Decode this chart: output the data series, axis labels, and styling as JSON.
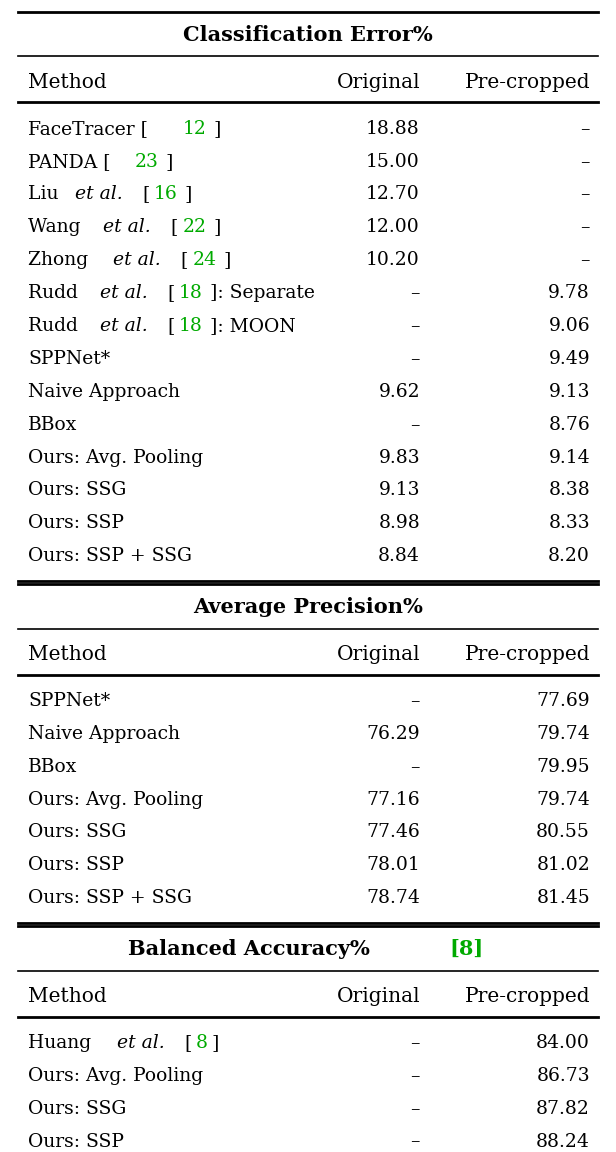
{
  "title1": "Classification Error%",
  "title2": "Average Precision%",
  "title3": "Balanced Accuracy% [8]",
  "title3_ref": "8",
  "col_headers": [
    "Method",
    "Original",
    "Pre-cropped"
  ],
  "table1_rows": [
    {
      "method": "FaceTracer [12]",
      "method_parts": [
        {
          "text": "FaceTracer [",
          "style": "normal"
        },
        {
          "text": "12",
          "style": "green"
        },
        {
          "text": "]",
          "style": "normal"
        }
      ],
      "original": "18.88",
      "precropped": "–"
    },
    {
      "method": "PANDA [23]",
      "method_parts": [
        {
          "text": "PANDA [",
          "style": "normal"
        },
        {
          "text": "23",
          "style": "green"
        },
        {
          "text": "]",
          "style": "normal"
        }
      ],
      "original": "15.00",
      "precropped": "–"
    },
    {
      "method": "Liu et al. [16]",
      "method_parts": [
        {
          "text": "Liu ",
          "style": "normal"
        },
        {
          "text": "et al.",
          "style": "italic"
        },
        {
          "text": " [",
          "style": "normal"
        },
        {
          "text": "16",
          "style": "green"
        },
        {
          "text": "]",
          "style": "normal"
        }
      ],
      "original": "12.70",
      "precropped": "–"
    },
    {
      "method": "Wang et al. [22]",
      "method_parts": [
        {
          "text": "Wang ",
          "style": "normal"
        },
        {
          "text": "et al.",
          "style": "italic"
        },
        {
          "text": " [",
          "style": "normal"
        },
        {
          "text": "22",
          "style": "green"
        },
        {
          "text": "]",
          "style": "normal"
        }
      ],
      "original": "12.00",
      "precropped": "–"
    },
    {
      "method": "Zhong et al. [24]",
      "method_parts": [
        {
          "text": "Zhong ",
          "style": "normal"
        },
        {
          "text": "et al.",
          "style": "italic"
        },
        {
          "text": " [",
          "style": "normal"
        },
        {
          "text": "24",
          "style": "green"
        },
        {
          "text": "]",
          "style": "normal"
        }
      ],
      "original": "10.20",
      "precropped": "–"
    },
    {
      "method": "Rudd et al. [18]: Separate",
      "method_parts": [
        {
          "text": "Rudd ",
          "style": "normal"
        },
        {
          "text": "et al.",
          "style": "italic"
        },
        {
          "text": " [",
          "style": "normal"
        },
        {
          "text": "18",
          "style": "green"
        },
        {
          "text": "]: Separate",
          "style": "normal"
        }
      ],
      "original": "–",
      "precropped": "9.78"
    },
    {
      "method": "Rudd et al. [18]: MOON",
      "method_parts": [
        {
          "text": "Rudd ",
          "style": "normal"
        },
        {
          "text": "et al.",
          "style": "italic"
        },
        {
          "text": " [",
          "style": "normal"
        },
        {
          "text": "18",
          "style": "green"
        },
        {
          "text": "]: MOON",
          "style": "normal"
        }
      ],
      "original": "–",
      "precropped": "9.06"
    },
    {
      "method": "SPPNet*",
      "method_parts": [
        {
          "text": "SPPNet*",
          "style": "normal"
        }
      ],
      "original": "–",
      "precropped": "9.49"
    },
    {
      "method": "Naive Approach",
      "method_parts": [
        {
          "text": "Naive Approach",
          "style": "normal"
        }
      ],
      "original": "9.62",
      "precropped": "9.13"
    },
    {
      "method": "BBox",
      "method_parts": [
        {
          "text": "BBox",
          "style": "normal"
        }
      ],
      "original": "–",
      "precropped": "8.76"
    },
    {
      "method": "Ours: Avg. Pooling",
      "method_parts": [
        {
          "text": "Ours: Avg. Pooling",
          "style": "normal"
        }
      ],
      "original": "9.83",
      "precropped": "9.14"
    },
    {
      "method": "Ours: SSG",
      "method_parts": [
        {
          "text": "Ours: SSG",
          "style": "normal"
        }
      ],
      "original": "9.13",
      "precropped": "8.38"
    },
    {
      "method": "Ours: SSP",
      "method_parts": [
        {
          "text": "Ours: SSP",
          "style": "normal"
        }
      ],
      "original": "8.98",
      "precropped": "8.33"
    },
    {
      "method": "Ours: SSP + SSG",
      "method_parts": [
        {
          "text": "Ours: SSP + SSG",
          "style": "normal"
        }
      ],
      "original": "8.84",
      "precropped": "8.20"
    }
  ],
  "table2_rows": [
    {
      "method": "SPPNet*",
      "method_parts": [
        {
          "text": "SPPNet*",
          "style": "normal"
        }
      ],
      "original": "–",
      "precropped": "77.69"
    },
    {
      "method": "Naive Approach",
      "method_parts": [
        {
          "text": "Naive Approach",
          "style": "normal"
        }
      ],
      "original": "76.29",
      "precropped": "79.74"
    },
    {
      "method": "BBox",
      "method_parts": [
        {
          "text": "BBox",
          "style": "normal"
        }
      ],
      "original": "–",
      "precropped": "79.95"
    },
    {
      "method": "Ours: Avg. Pooling",
      "method_parts": [
        {
          "text": "Ours: Avg. Pooling",
          "style": "normal"
        }
      ],
      "original": "77.16",
      "precropped": "79.74"
    },
    {
      "method": "Ours: SSG",
      "method_parts": [
        {
          "text": "Ours: SSG",
          "style": "normal"
        }
      ],
      "original": "77.46",
      "precropped": "80.55"
    },
    {
      "method": "Ours: SSP",
      "method_parts": [
        {
          "text": "Ours: SSP",
          "style": "normal"
        }
      ],
      "original": "78.01",
      "precropped": "81.02"
    },
    {
      "method": "Ours: SSP + SSG",
      "method_parts": [
        {
          "text": "Ours: SSP + SSG",
          "style": "normal"
        }
      ],
      "original": "78.74",
      "precropped": "81.45"
    }
  ],
  "table3_rows": [
    {
      "method": "Huang et al. [8]",
      "method_parts": [
        {
          "text": "Huang ",
          "style": "normal"
        },
        {
          "text": "et al.",
          "style": "italic"
        },
        {
          "text": " [",
          "style": "normal"
        },
        {
          "text": "8",
          "style": "green"
        },
        {
          "text": "]",
          "style": "normal"
        }
      ],
      "original": "–",
      "precropped": "84.00"
    },
    {
      "method": "Ours: Avg. Pooling",
      "method_parts": [
        {
          "text": "Ours: Avg. Pooling",
          "style": "normal"
        }
      ],
      "original": "–",
      "precropped": "86.73"
    },
    {
      "method": "Ours: SSG",
      "method_parts": [
        {
          "text": "Ours: SSG",
          "style": "normal"
        }
      ],
      "original": "–",
      "precropped": "87.82"
    },
    {
      "method": "Ours: SSP",
      "method_parts": [
        {
          "text": "Ours: SSP",
          "style": "normal"
        }
      ],
      "original": "–",
      "precropped": "88.24"
    }
  ],
  "bg_color": "#ffffff",
  "text_color": "#000000",
  "green_color": "#00aa00",
  "font_size": 13.5,
  "header_font_size": 14.5,
  "title_font_size": 15.0
}
